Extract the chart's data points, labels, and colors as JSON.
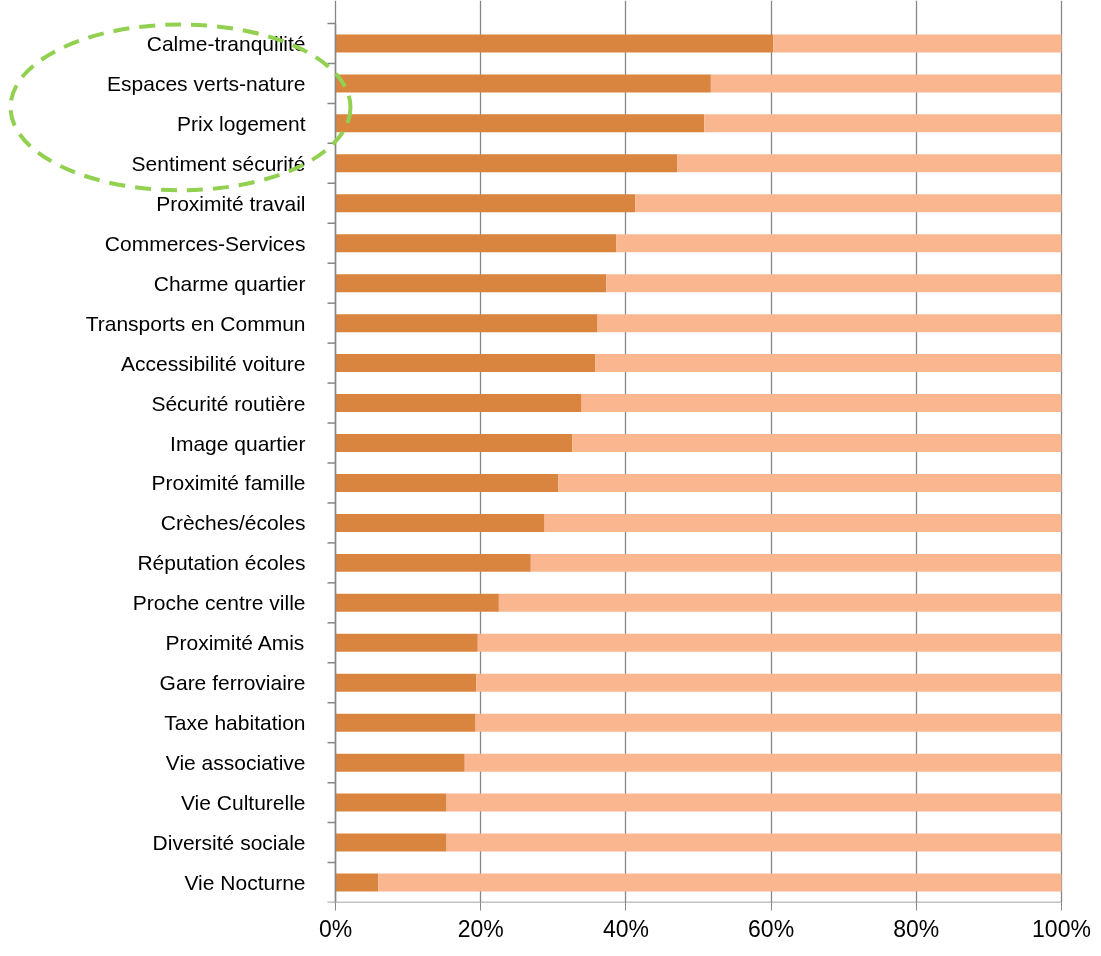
{
  "chart_data": {
    "type": "bar",
    "orientation": "horizontal",
    "stacked": true,
    "categories": [
      "Calme-tranquilité",
      "Espaces verts-nature",
      "Prix logement",
      "Sentiment sécurité",
      "Proximité travail",
      "Commerces-Services",
      "Charme quartier",
      "Transports en Commun",
      "Accessibilité voiture",
      "Sécurité routière",
      "Image quartier",
      "Proximité famille",
      "Crèches/écoles",
      "Réputation écoles",
      "Proche centre ville",
      "Proximité Amis",
      "Gare ferroviaire",
      "Taxe habitation",
      "Vie associative",
      "Vie Culturelle",
      "Diversité sociale",
      "Vie Nocturne"
    ],
    "series": [
      {
        "color": "#d9843f",
        "values": [
          60.3,
          51.7,
          50.8,
          47.1,
          41.3,
          38.7,
          37.3,
          36.1,
          35.8,
          33.9,
          32.6,
          30.7,
          28.8,
          26.9,
          22.5,
          19.6,
          19.4,
          19.3,
          17.8,
          15.3,
          15.3,
          5.9
        ]
      },
      {
        "color": "#f9b68f",
        "values": [
          39.7,
          48.3,
          49.2,
          52.9,
          58.7,
          61.3,
          62.7,
          63.9,
          64.2,
          66.1,
          67.4,
          69.3,
          71.2,
          73.1,
          77.5,
          80.4,
          80.6,
          80.7,
          82.2,
          84.7,
          84.7,
          94.1
        ]
      }
    ],
    "xlim": [
      0,
      100
    ],
    "xticks": [
      {
        "value": 0,
        "label": "0%"
      },
      {
        "value": 20,
        "label": "20%"
      },
      {
        "value": 40,
        "label": "40%"
      },
      {
        "value": 60,
        "label": "60%"
      },
      {
        "value": 80,
        "label": "80%"
      },
      {
        "value": 100,
        "label": "100%"
      }
    ],
    "grid": "x"
  }
}
